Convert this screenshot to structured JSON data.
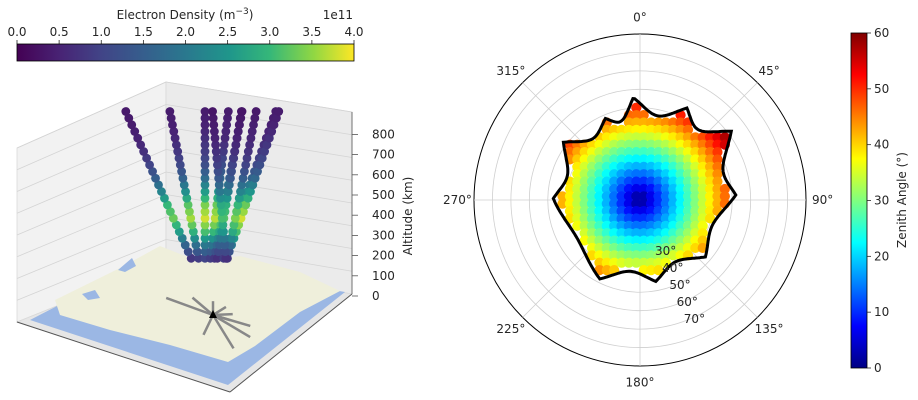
{
  "chart_data": [
    {
      "type": "3d-scatter",
      "colorbar": {
        "label": "Electron Density (m$^{-3}$)",
        "label_main": "Electron Density (m",
        "label_sup": "−3",
        "label_close": ")",
        "offset_text": "1e11",
        "ticks": [
          "0.0",
          "0.5",
          "1.0",
          "1.5",
          "2.0",
          "2.5",
          "3.0",
          "3.5",
          "4.0"
        ],
        "range": [
          0,
          4.0
        ],
        "colormap": "viridis",
        "orientation": "horizontal",
        "position": "top"
      },
      "zlabel": "Altitude (km)",
      "zticks": [
        "0",
        "100",
        "200",
        "300",
        "400",
        "500",
        "600",
        "700",
        "800"
      ],
      "zlim": [
        0,
        800
      ],
      "basemap": {
        "land_color": "#efefdb",
        "water_color": "#9bb7e4"
      },
      "station_marker": "triangle",
      "beams": [
        {
          "az": 320,
          "el": 55,
          "n": [
            0.8,
            1.6,
            2.6,
            3.3,
            3.0,
            2.2,
            1.5,
            1.0,
            0.7,
            0.5,
            0.4,
            0.35
          ]
        },
        {
          "az": 340,
          "el": 60,
          "n": [
            0.9,
            1.8,
            2.9,
            3.6,
            3.2,
            2.4,
            1.6,
            1.1,
            0.8,
            0.6,
            0.45,
            0.4
          ]
        },
        {
          "az": 0,
          "el": 65,
          "n": [
            1.0,
            2.0,
            3.1,
            3.8,
            3.4,
            2.6,
            1.8,
            1.2,
            0.9,
            0.7,
            0.5,
            0.4
          ]
        },
        {
          "az": 20,
          "el": 70,
          "n": [
            0.9,
            1.9,
            3.0,
            3.7,
            3.3,
            2.5,
            1.7,
            1.2,
            0.85,
            0.6,
            0.5,
            0.4
          ]
        },
        {
          "az": 45,
          "el": 75,
          "n": [
            0.8,
            1.7,
            2.8,
            3.5,
            3.1,
            2.3,
            1.6,
            1.1,
            0.8,
            0.6,
            0.45,
            0.35
          ]
        },
        {
          "az": 70,
          "el": 80,
          "n": [
            0.7,
            1.5,
            2.5,
            3.2,
            2.9,
            2.1,
            1.4,
            1.0,
            0.7,
            0.5,
            0.4,
            0.3
          ]
        },
        {
          "az": 100,
          "el": 70,
          "n": [
            0.9,
            1.8,
            2.9,
            3.6,
            3.2,
            2.4,
            1.6,
            1.1,
            0.8,
            0.6,
            0.45,
            0.4
          ]
        },
        {
          "az": 130,
          "el": 65,
          "n": [
            1.0,
            2.0,
            3.1,
            3.8,
            3.3,
            2.5,
            1.7,
            1.2,
            0.9,
            0.7,
            0.5,
            0.4
          ]
        },
        {
          "az": 160,
          "el": 60,
          "n": [
            0.8,
            1.7,
            2.8,
            3.4,
            3.0,
            2.2,
            1.5,
            1.0,
            0.75,
            0.55,
            0.45,
            0.35
          ]
        },
        {
          "az": 200,
          "el": 75,
          "n": [
            0.7,
            1.5,
            2.5,
            3.1,
            2.8,
            2.0,
            1.4,
            0.95,
            0.7,
            0.5,
            0.4,
            0.3
          ]
        }
      ],
      "altitudes_km": [
        75,
        135,
        195,
        255,
        315,
        375,
        435,
        495,
        555,
        615,
        675,
        735
      ]
    },
    {
      "type": "polar-scatter",
      "theta_direction": "clockwise",
      "theta_zero": "N",
      "theta_ticks": [
        "0°",
        "45°",
        "90°",
        "135°",
        "180°",
        "225°",
        "270°",
        "315°"
      ],
      "r_axis": "zenith angle",
      "r_ticks": [
        "30°",
        "40°",
        "50°",
        "60°",
        "70°"
      ],
      "r_max": 90,
      "colorbar": {
        "label": "Zenith Angle (°)",
        "ticks": [
          "0",
          "10",
          "20",
          "30",
          "40",
          "50",
          "60"
        ],
        "range": [
          0,
          60
        ],
        "colormap": "jet",
        "orientation": "vertical",
        "position": "right"
      },
      "points": {
        "grid_spacing_deg": 4,
        "boundary": "field-of-view outline"
      },
      "field_of_view_outline": {
        "vertices": [
          [
            -3,
            57
          ],
          [
            27,
            56
          ],
          [
            53,
            62
          ],
          [
            87,
            52
          ],
          [
            131,
            47
          ],
          [
            169,
            45
          ],
          [
            207,
            48
          ],
          [
            271,
            47
          ],
          [
            307,
            52
          ],
          [
            337,
            48
          ],
          [
            357,
            55
          ]
        ],
        "bow_toward_center": 0.16
      }
    }
  ]
}
